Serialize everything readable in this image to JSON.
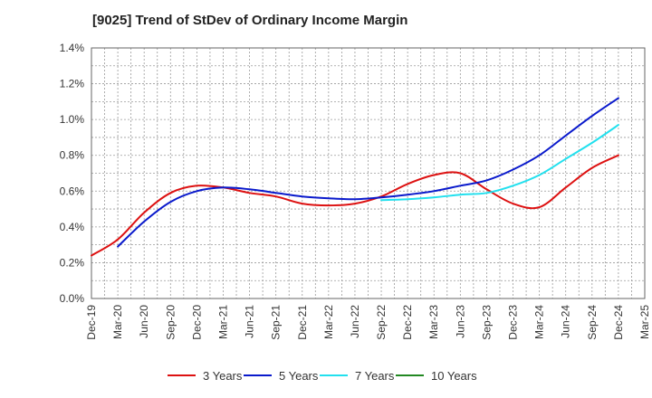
{
  "chart_data": {
    "type": "line",
    "title": "[9025]  Trend of StDev of Ordinary Income Margin",
    "xlabel": "",
    "ylabel": "",
    "x_tick_labels": [
      "Dec-19",
      "Mar-20",
      "Jun-20",
      "Sep-20",
      "Dec-20",
      "Mar-21",
      "Jun-21",
      "Sep-21",
      "Dec-21",
      "Mar-22",
      "Jun-22",
      "Sep-22",
      "Dec-22",
      "Mar-23",
      "Jun-23",
      "Sep-23",
      "Dec-23",
      "Mar-24",
      "Jun-24",
      "Sep-24",
      "Dec-24",
      "Mar-25"
    ],
    "y_tick_labels": [
      "0.0%",
      "0.2%",
      "0.4%",
      "0.6%",
      "0.8%",
      "1.0%",
      "1.2%",
      "1.4%"
    ],
    "y_ticks": [
      0,
      0.2,
      0.4,
      0.6,
      0.8,
      1.0,
      1.2,
      1.4
    ],
    "ylim": [
      0,
      1.4
    ],
    "y_unit": "%",
    "grid": true,
    "legend_position": "bottom",
    "series": [
      {
        "name": "3 Years",
        "color": "#dd1111",
        "x": [
          "Dec-19",
          "Mar-20",
          "Jun-20",
          "Sep-20",
          "Dec-20",
          "Mar-21",
          "Jun-21",
          "Sep-21",
          "Dec-21",
          "Mar-22",
          "Jun-22",
          "Sep-22",
          "Dec-22",
          "Mar-23",
          "Jun-23",
          "Sep-23",
          "Dec-23",
          "Mar-24",
          "Jun-24",
          "Sep-24",
          "Dec-24"
        ],
        "values": [
          0.24,
          0.33,
          0.48,
          0.59,
          0.63,
          0.62,
          0.59,
          0.57,
          0.53,
          0.52,
          0.53,
          0.57,
          0.64,
          0.69,
          0.7,
          0.61,
          0.53,
          0.51,
          0.62,
          0.73,
          0.8
        ]
      },
      {
        "name": "5 Years",
        "color": "#0a1acc",
        "x": [
          "Mar-20",
          "Jun-20",
          "Sep-20",
          "Dec-20",
          "Mar-21",
          "Jun-21",
          "Sep-21",
          "Dec-21",
          "Mar-22",
          "Jun-22",
          "Sep-22",
          "Dec-22",
          "Mar-23",
          "Jun-23",
          "Sep-23",
          "Dec-23",
          "Mar-24",
          "Jun-24",
          "Sep-24",
          "Dec-24"
        ],
        "values": [
          0.29,
          0.43,
          0.54,
          0.6,
          0.62,
          0.61,
          0.59,
          0.57,
          0.56,
          0.555,
          0.565,
          0.58,
          0.6,
          0.63,
          0.66,
          0.72,
          0.8,
          0.91,
          1.02,
          1.12
        ]
      },
      {
        "name": "7 Years",
        "color": "#22e0ee",
        "x": [
          "Sep-22",
          "Dec-22",
          "Mar-23",
          "Jun-23",
          "Sep-23",
          "Dec-23",
          "Mar-24",
          "Jun-24",
          "Sep-24",
          "Dec-24"
        ],
        "values": [
          0.55,
          0.555,
          0.565,
          0.58,
          0.59,
          0.63,
          0.69,
          0.78,
          0.87,
          0.97
        ]
      },
      {
        "name": "10 Years",
        "color": "#228822",
        "x": [],
        "values": []
      }
    ]
  }
}
